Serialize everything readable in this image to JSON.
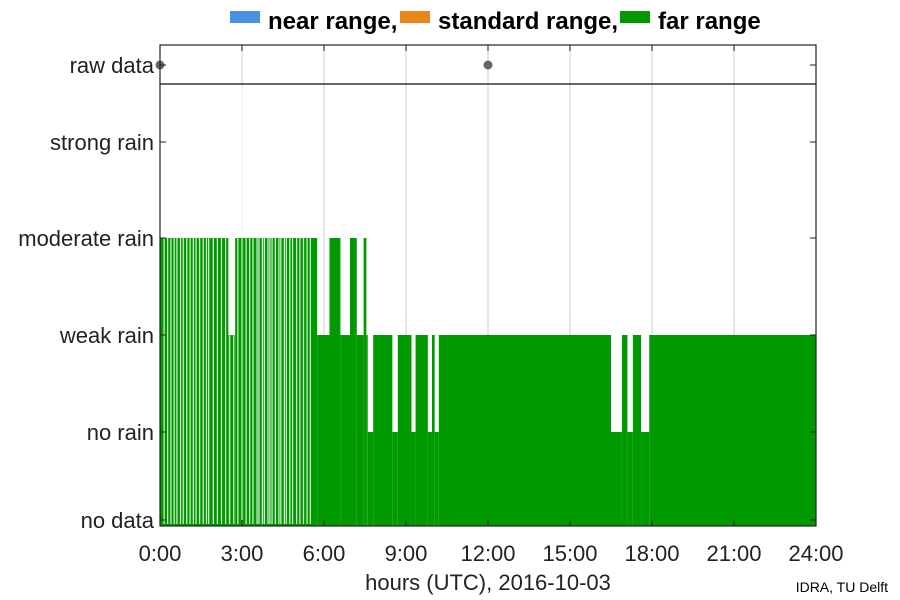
{
  "chart_data": [
    {
      "panel": "raw-data",
      "type": "scatter",
      "yticklabels": [
        "raw data"
      ],
      "points": [
        {
          "x": 0.0,
          "y": "raw data"
        },
        {
          "x": 12.0,
          "y": "raw data"
        }
      ],
      "marker_color": "#666666",
      "xlim": [
        0,
        24
      ],
      "grid": true
    },
    {
      "panel": "rain-class",
      "type": "bar",
      "xlabel": "hours (UTC), 2016-10-03",
      "xlim": [
        0,
        24
      ],
      "xticks": [
        0,
        3,
        6,
        9,
        12,
        15,
        18,
        21,
        24
      ],
      "xticklabels": [
        "0:00",
        "3:00",
        "6:00",
        "9:00",
        "12:00",
        "15:00",
        "18:00",
        "21:00",
        "24:00"
      ],
      "yticklabels": [
        "no data",
        "no rain",
        "weak rain",
        "moderate rain",
        "strong rain"
      ],
      "ylim": [
        0,
        4.2
      ],
      "grid": true,
      "legend": {
        "position": "top",
        "entries": [
          "near range,",
          "standard range,",
          "far range"
        ],
        "colors": [
          "#4a90e2",
          "#e8861a",
          "#009900"
        ]
      },
      "series": [
        {
          "name": "far range",
          "color": "#009900",
          "levels": [
            {
              "x_start": 0.0,
              "x_end": 0.5,
              "value": 3
            },
            {
              "x_start": 0.5,
              "x_end": 1.7,
              "value": 3
            },
            {
              "x_start": 1.7,
              "x_end": 2.5,
              "value": 3
            },
            {
              "x_start": 2.5,
              "x_end": 2.75,
              "value": 2
            },
            {
              "x_start": 2.75,
              "x_end": 3.7,
              "value": 3
            },
            {
              "x_start": 3.7,
              "x_end": 4.5,
              "value": 3
            },
            {
              "x_start": 4.5,
              "x_end": 5.75,
              "value": 3
            },
            {
              "x_start": 5.75,
              "x_end": 6.2,
              "value": 2
            },
            {
              "x_start": 6.2,
              "x_end": 6.6,
              "value": 3
            },
            {
              "x_start": 6.6,
              "x_end": 6.95,
              "value": 2
            },
            {
              "x_start": 6.95,
              "x_end": 7.2,
              "value": 3
            },
            {
              "x_start": 7.2,
              "x_end": 7.45,
              "value": 2
            },
            {
              "x_start": 7.45,
              "x_end": 7.55,
              "value": 3
            },
            {
              "x_start": 7.55,
              "x_end": 7.6,
              "value": 2
            },
            {
              "x_start": 7.6,
              "x_end": 7.8,
              "value": 1
            },
            {
              "x_start": 7.8,
              "x_end": 8.5,
              "value": 2
            },
            {
              "x_start": 8.5,
              "x_end": 8.7,
              "value": 1
            },
            {
              "x_start": 8.7,
              "x_end": 9.2,
              "value": 2
            },
            {
              "x_start": 9.2,
              "x_end": 9.35,
              "value": 1
            },
            {
              "x_start": 9.35,
              "x_end": 9.8,
              "value": 2
            },
            {
              "x_start": 9.8,
              "x_end": 9.95,
              "value": 1
            },
            {
              "x_start": 9.95,
              "x_end": 10.05,
              "value": 2
            },
            {
              "x_start": 10.05,
              "x_end": 10.2,
              "value": 1
            },
            {
              "x_start": 10.2,
              "x_end": 16.5,
              "value": 2
            },
            {
              "x_start": 16.5,
              "x_end": 16.9,
              "value": 1
            },
            {
              "x_start": 16.9,
              "x_end": 17.1,
              "value": 2
            },
            {
              "x_start": 17.1,
              "x_end": 17.3,
              "value": 1
            },
            {
              "x_start": 17.3,
              "x_end": 17.6,
              "value": 2
            },
            {
              "x_start": 17.6,
              "x_end": 17.9,
              "value": 1
            },
            {
              "x_start": 17.9,
              "x_end": 24.0,
              "value": 2
            }
          ],
          "gaps_to_no_data": [
            0.15,
            0.28,
            0.4,
            0.52,
            0.62,
            0.75,
            0.85,
            0.98,
            1.1,
            1.22,
            1.32,
            1.45,
            1.58,
            1.7,
            1.78,
            1.95,
            2.1,
            2.25,
            2.4,
            2.55,
            2.7,
            2.85,
            3.0,
            3.15,
            3.28,
            3.4,
            3.55,
            3.62,
            3.75,
            3.82,
            3.95,
            4.02,
            4.1,
            4.22,
            4.35,
            4.42,
            4.55,
            4.62,
            4.75,
            4.85,
            5.0,
            5.12,
            5.25,
            5.38,
            5.5
          ]
        }
      ]
    }
  ],
  "credit": "IDRA, TU Delft"
}
